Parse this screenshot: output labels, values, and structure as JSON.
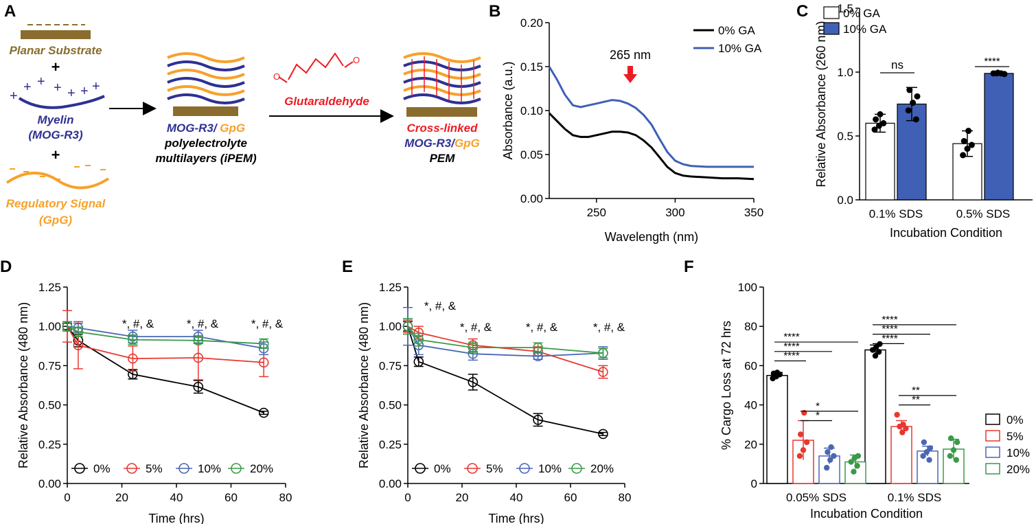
{
  "panel_labels": {
    "A": "A",
    "B": "B",
    "C": "C",
    "D": "D",
    "E": "E",
    "F": "F"
  },
  "colors": {
    "brown": "#8a6d2e",
    "blue": "#2e3192",
    "orange": "#f7a12b",
    "red": "#ed1c24",
    "navy": "#3f60b5",
    "black": "#000000",
    "pct5": "#e8372f",
    "pct10": "#4a67b5",
    "pct20": "#3a9a48"
  },
  "schematic": {
    "planar_substrate": "Planar Substrate",
    "myelin": "Myelin",
    "mog_r3": "(MOG-R3)",
    "regulatory_signal": "Regulatory Signal",
    "gpg": "(GpG)",
    "plus": "+",
    "ipem_line1_a": "MOG-R3/ ",
    "ipem_line1_b": "GpG",
    "ipem_line2": "polyelectrolyte",
    "ipem_line3": "multilayers (iPEM)",
    "glutaraldehyde": "Glutaraldehyde",
    "crosslinked_line1": "Cross-linked",
    "crosslinked_line2_a": "MOG-R3/",
    "crosslinked_line2_b": "GpG",
    "crosslinked_line3": "PEM"
  },
  "chart_data": [
    {
      "id": "B",
      "type": "line",
      "xlabel": "Wavelength (nm)",
      "ylabel": "Absorbance (a.u.)",
      "xlim": [
        220,
        350
      ],
      "ylim": [
        0,
        0.2
      ],
      "xticks": [
        250,
        300,
        350
      ],
      "xtick_labels": [
        "250",
        "300",
        "350"
      ],
      "yticks": [
        0,
        0.05,
        0.1,
        0.15,
        0.2
      ],
      "ytick_labels": [
        "0.00",
        "0.05",
        "0.10",
        "0.15",
        "0.20"
      ],
      "annotation": "265 nm",
      "series": [
        {
          "name": "0% GA",
          "color": "#000000",
          "x": [
            220,
            225,
            230,
            235,
            240,
            245,
            250,
            255,
            260,
            265,
            270,
            275,
            280,
            285,
            290,
            295,
            300,
            305,
            310,
            320,
            330,
            340,
            350
          ],
          "y": [
            0.097,
            0.088,
            0.079,
            0.072,
            0.07,
            0.07,
            0.072,
            0.074,
            0.076,
            0.076,
            0.075,
            0.072,
            0.066,
            0.058,
            0.047,
            0.036,
            0.029,
            0.026,
            0.025,
            0.024,
            0.023,
            0.023,
            0.022
          ]
        },
        {
          "name": "10% GA",
          "color": "#3f60b5",
          "x": [
            220,
            225,
            230,
            235,
            240,
            245,
            250,
            255,
            260,
            265,
            270,
            275,
            280,
            285,
            290,
            295,
            300,
            305,
            310,
            320,
            330,
            340,
            350
          ],
          "y": [
            0.15,
            0.135,
            0.118,
            0.106,
            0.104,
            0.106,
            0.108,
            0.11,
            0.112,
            0.111,
            0.108,
            0.103,
            0.095,
            0.084,
            0.068,
            0.053,
            0.043,
            0.039,
            0.037,
            0.036,
            0.036,
            0.036,
            0.036
          ]
        }
      ]
    },
    {
      "id": "C",
      "type": "bar",
      "xlabel": "Incubation Condition",
      "ylabel": "Relative Absorbance (260 nm)",
      "ylim": [
        0,
        1.5
      ],
      "yticks": [
        0,
        0.5,
        1.0,
        1.5
      ],
      "ytick_labels": [
        "0.0",
        "0.5",
        "1.0",
        "1.5"
      ],
      "categories": [
        "0.1% SDS",
        "0.5% SDS"
      ],
      "series": [
        {
          "name": "0% GA",
          "color": "#ffffff",
          "values": [
            0.6,
            0.44
          ],
          "errors": [
            0.07,
            0.1
          ],
          "points": [
            [
              0.55,
              0.58,
              0.6,
              0.63,
              0.67
            ],
            [
              0.35,
              0.4,
              0.43,
              0.46,
              0.54
            ]
          ]
        },
        {
          "name": "10% GA",
          "color": "#3f60b5",
          "values": [
            0.75,
            0.99
          ],
          "errors": [
            0.13,
            0.01
          ],
          "points": [
            [
              0.63,
              0.7,
              0.76,
              0.81,
              0.86
            ],
            [
              0.985,
              0.99,
              0.99,
              0.99,
              0.995
            ]
          ]
        }
      ],
      "significance": [
        "ns",
        "****"
      ]
    },
    {
      "id": "D",
      "type": "line",
      "xlabel": "Time (hrs)",
      "ylabel": "Relative Absorbance (480 nm)",
      "xlim": [
        0,
        80
      ],
      "ylim": [
        0,
        1.25
      ],
      "xticks": [
        0,
        20,
        40,
        60,
        80
      ],
      "xtick_labels": [
        "0",
        "20",
        "40",
        "60",
        "80"
      ],
      "yticks": [
        0,
        0.25,
        0.5,
        0.75,
        1.0,
        1.25
      ],
      "ytick_labels": [
        "0.00",
        "0.25",
        "0.50",
        "0.75",
        "1.00",
        "1.25"
      ],
      "annotations": [
        "*, #, &",
        "*, #, &",
        "*, #, &"
      ],
      "series": [
        {
          "name": "0%",
          "color": "#000000",
          "x": [
            0,
            4,
            24,
            48,
            72
          ],
          "y": [
            1.0,
            0.91,
            0.695,
            0.615,
            0.45
          ],
          "err": [
            0.02,
            0.04,
            0.03,
            0.04,
            0.01
          ]
        },
        {
          "name": "5%",
          "color": "#e8372f",
          "x": [
            0,
            4,
            24,
            48,
            72
          ],
          "y": [
            1.0,
            0.88,
            0.795,
            0.8,
            0.77
          ],
          "err": [
            0.1,
            0.15,
            0.08,
            0.14,
            0.09
          ]
        },
        {
          "name": "10%",
          "color": "#4a67b5",
          "x": [
            0,
            4,
            24,
            48,
            72
          ],
          "y": [
            1.0,
            0.99,
            0.935,
            0.935,
            0.86
          ],
          "err": [
            0.03,
            0.03,
            0.04,
            0.04,
            0.04
          ]
        },
        {
          "name": "20%",
          "color": "#3a9a48",
          "x": [
            0,
            4,
            24,
            48,
            72
          ],
          "y": [
            1.0,
            0.965,
            0.915,
            0.91,
            0.89
          ],
          "err": [
            0.03,
            0.03,
            0.03,
            0.02,
            0.03
          ]
        }
      ]
    },
    {
      "id": "E",
      "type": "line",
      "xlabel": "Time (hrs)",
      "ylabel": "Relative Absorbance (480 nm)",
      "xlim": [
        0,
        80
      ],
      "ylim": [
        0,
        1.25
      ],
      "xticks": [
        0,
        20,
        40,
        60,
        80
      ],
      "xtick_labels": [
        "0",
        "20",
        "40",
        "60",
        "80"
      ],
      "yticks": [
        0,
        0.25,
        0.5,
        0.75,
        1.0,
        1.25
      ],
      "ytick_labels": [
        "0.00",
        "0.25",
        "0.50",
        "0.75",
        "1.00",
        "1.25"
      ],
      "annotations": [
        "*, #, &",
        "*, #, &",
        "*, #, &",
        "*, #, &"
      ],
      "series": [
        {
          "name": "0%",
          "color": "#000000",
          "x": [
            0,
            4,
            24,
            48,
            72
          ],
          "y": [
            1.0,
            0.775,
            0.645,
            0.405,
            0.315
          ],
          "err": [
            0.03,
            0.03,
            0.05,
            0.04,
            0.01
          ]
        },
        {
          "name": "5%",
          "color": "#e8372f",
          "x": [
            0,
            4,
            24,
            48,
            72
          ],
          "y": [
            1.0,
            0.96,
            0.88,
            0.84,
            0.71
          ],
          "err": [
            0.04,
            0.04,
            0.04,
            0.03,
            0.04
          ]
        },
        {
          "name": "10%",
          "color": "#4a67b5",
          "x": [
            0,
            4,
            24,
            48,
            72
          ],
          "y": [
            1.0,
            0.88,
            0.825,
            0.81,
            0.83
          ],
          "err": [
            0.12,
            0.06,
            0.04,
            0.02,
            0.04
          ]
        },
        {
          "name": "20%",
          "color": "#3a9a48",
          "x": [
            0,
            4,
            24,
            48,
            72
          ],
          "y": [
            1.0,
            0.915,
            0.865,
            0.865,
            0.83
          ],
          "err": [
            0.05,
            0.04,
            0.03,
            0.03,
            0.03
          ]
        }
      ]
    },
    {
      "id": "F",
      "type": "bar",
      "xlabel": "Incubation Condition",
      "ylabel": "% Cargo Loss at 72 hrs",
      "ylim": [
        0,
        100
      ],
      "yticks": [
        0,
        20,
        40,
        60,
        80,
        100
      ],
      "ytick_labels": [
        "0",
        "20",
        "40",
        "60",
        "80",
        "100"
      ],
      "categories": [
        "0.05% SDS",
        "0.1% SDS"
      ],
      "series": [
        {
          "name": "0%",
          "color": "#000000",
          "values": [
            55,
            68
          ],
          "errors": [
            1.5,
            2.5
          ],
          "points": [
            [
              53.5,
              54.5,
              55.5,
              56,
              56.5
            ],
            [
              65,
              67,
              68,
              69.5,
              71
            ]
          ]
        },
        {
          "name": "5%",
          "color": "#e8372f",
          "values": [
            22,
            29
          ],
          "errors": [
            10,
            3
          ],
          "points": [
            [
              14,
              17,
              21,
              25,
              36
            ],
            [
              26,
              28,
              29,
              30,
              35
            ]
          ]
        },
        {
          "name": "10%",
          "color": "#4a67b5",
          "values": [
            14,
            16.5
          ],
          "errors": [
            4,
            2.5
          ],
          "points": [
            [
              8,
              12,
              14,
              16,
              18.5
            ],
            [
              12,
              14,
              16,
              18,
              21
            ]
          ]
        },
        {
          "name": "20%",
          "color": "#3a9a48",
          "values": [
            11,
            17.5
          ],
          "errors": [
            3.5,
            5
          ],
          "points": [
            [
              6,
              9,
              11,
              13,
              14
            ],
            [
              12,
              14,
              17,
              21,
              23
            ]
          ]
        }
      ],
      "significance": [
        "****",
        "****",
        "****",
        "*",
        "*",
        "****",
        "****",
        "****",
        "**",
        "**"
      ]
    }
  ]
}
